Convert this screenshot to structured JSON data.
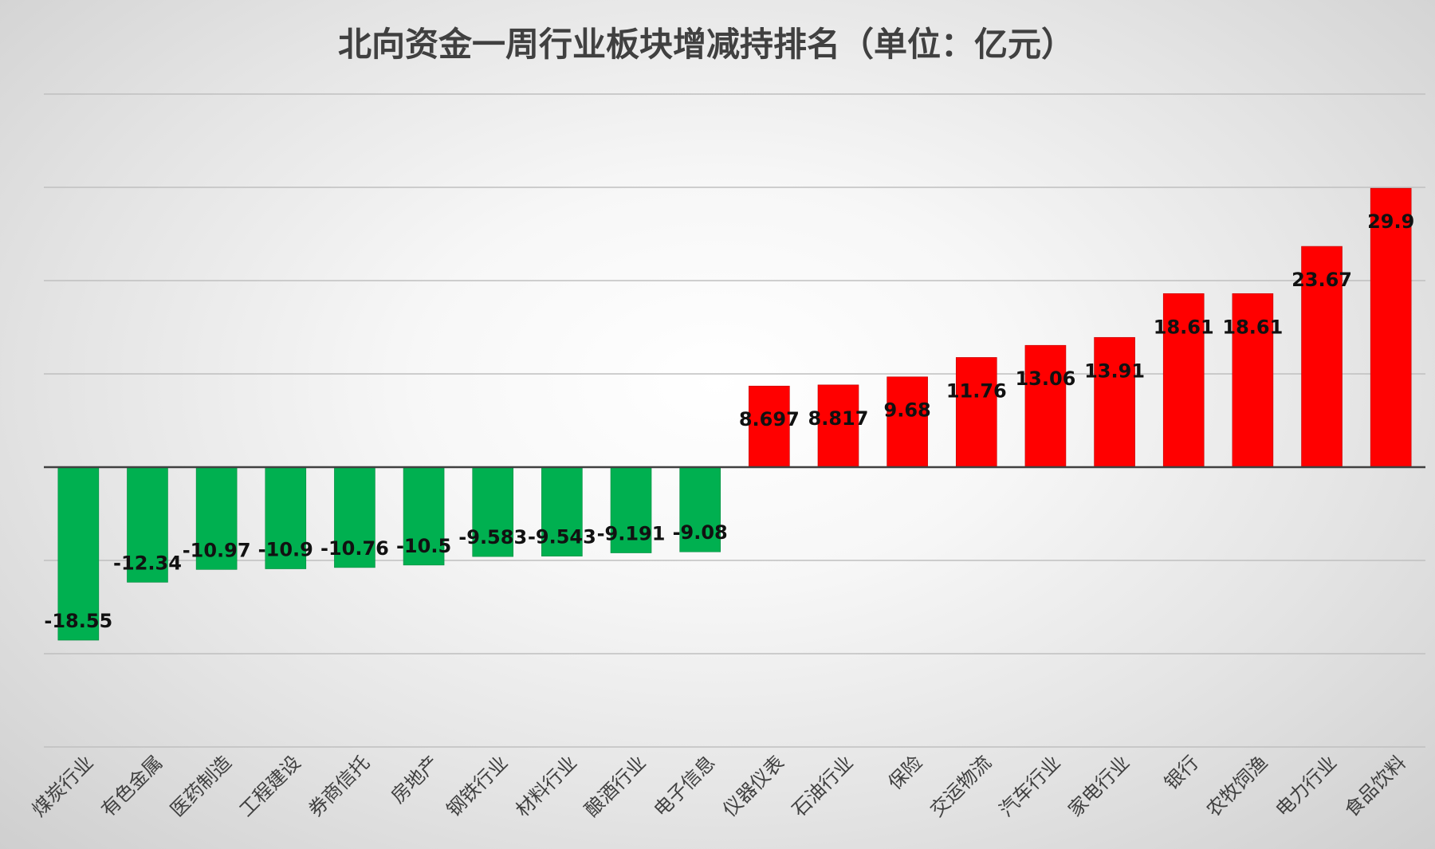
{
  "chart_data": {
    "type": "bar",
    "title": "北向资金一周行业板块增减持排名（单位：亿元）",
    "xlabel": "",
    "ylabel": "",
    "ylim": [
      -30,
      40
    ],
    "gridlines": [
      -30,
      -20,
      -10,
      0,
      10,
      20,
      30,
      40
    ],
    "grid": true,
    "legend": "none",
    "categories": [
      "煤炭行业",
      "有色金属",
      "医药制造",
      "工程建设",
      "券商信托",
      "房地产",
      "钢铁行业",
      "材料行业",
      "酿酒行业",
      "电子信息",
      "仪器仪表",
      "石油行业",
      "保险",
      "交运物流",
      "汽车行业",
      "家电行业",
      "银行",
      "农牧饲渔",
      "电力行业",
      "食品饮料"
    ],
    "values": [
      -18.55,
      -12.34,
      -10.97,
      -10.9,
      -10.76,
      -10.5,
      -9.583,
      -9.543,
      -9.191,
      -9.08,
      8.697,
      8.817,
      9.68,
      11.76,
      13.06,
      13.91,
      18.61,
      18.61,
      23.67,
      29.9
    ],
    "data_labels": [
      "-18.55",
      "-12.34",
      "-10.97",
      "-10.9",
      "-10.76",
      "-10.5",
      "-9.583",
      "-9.543",
      "-9.191",
      "-9.08",
      "8.697",
      "8.817",
      "9.68",
      "11.76",
      "13.06",
      "13.91",
      "18.61",
      "18.61",
      "23.67",
      "29.9"
    ],
    "colors": {
      "positive": "#ff0000",
      "negative": "#00b050",
      "grid": "#bfbfbf",
      "zero_axis": "#404040",
      "text": "#404040"
    }
  }
}
